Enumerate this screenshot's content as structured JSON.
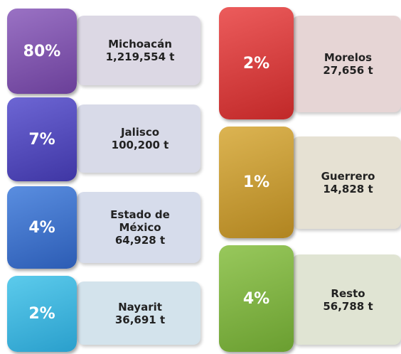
{
  "items": [
    {
      "percent": "80%",
      "name": "Michoacán",
      "amount": "1,219,554 t"
    },
    {
      "percent": "7%",
      "name": "Jalisco",
      "amount": "100,200 t"
    },
    {
      "percent": "4%",
      "name": "Estado de México",
      "amount": "64,928 t"
    },
    {
      "percent": "2%",
      "name": "Nayarit",
      "amount": "36,691 t"
    },
    {
      "percent": "2%",
      "name": "Morelos",
      "amount": "27,656 t"
    },
    {
      "percent": "1%",
      "name": "Guerrero",
      "amount": "14,828 t"
    },
    {
      "percent": "4%",
      "name": "Resto",
      "amount": "56,788 t"
    }
  ]
}
